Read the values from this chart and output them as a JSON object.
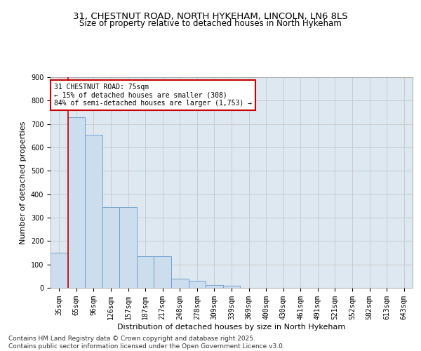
{
  "title_line1": "31, CHESTNUT ROAD, NORTH HYKEHAM, LINCOLN, LN6 8LS",
  "title_line2": "Size of property relative to detached houses in North Hykeham",
  "xlabel": "Distribution of detached houses by size in North Hykeham",
  "ylabel": "Number of detached properties",
  "bar_color": "#ccdded",
  "bar_edge_color": "#6699cc",
  "annotation_title": "31 CHESTNUT ROAD: 75sqm",
  "annotation_line2": "← 15% of detached houses are smaller (308)",
  "annotation_line3": "84% of semi-detached houses are larger (1,753) →",
  "annotation_box_color": "#cc0000",
  "vline_color": "#cc0000",
  "vline_x": 0.5,
  "categories": [
    "35sqm",
    "65sqm",
    "96sqm",
    "126sqm",
    "157sqm",
    "187sqm",
    "217sqm",
    "248sqm",
    "278sqm",
    "309sqm",
    "339sqm",
    "369sqm",
    "400sqm",
    "430sqm",
    "461sqm",
    "491sqm",
    "521sqm",
    "552sqm",
    "582sqm",
    "613sqm",
    "643sqm"
  ],
  "values": [
    150,
    730,
    655,
    345,
    345,
    135,
    135,
    40,
    30,
    11,
    8,
    0,
    0,
    0,
    0,
    0,
    0,
    0,
    0,
    0,
    0
  ],
  "ylim": [
    0,
    900
  ],
  "yticks": [
    0,
    100,
    200,
    300,
    400,
    500,
    600,
    700,
    800,
    900
  ],
  "grid_color": "#cccccc",
  "bg_color": "#dde8f0",
  "footer_line1": "Contains HM Land Registry data © Crown copyright and database right 2025.",
  "footer_line2": "Contains public sector information licensed under the Open Government Licence v3.0.",
  "title_fontsize": 9.5,
  "subtitle_fontsize": 8.5,
  "footer_fontsize": 6.5,
  "axis_label_fontsize": 8,
  "tick_fontsize": 7,
  "annot_fontsize": 7
}
